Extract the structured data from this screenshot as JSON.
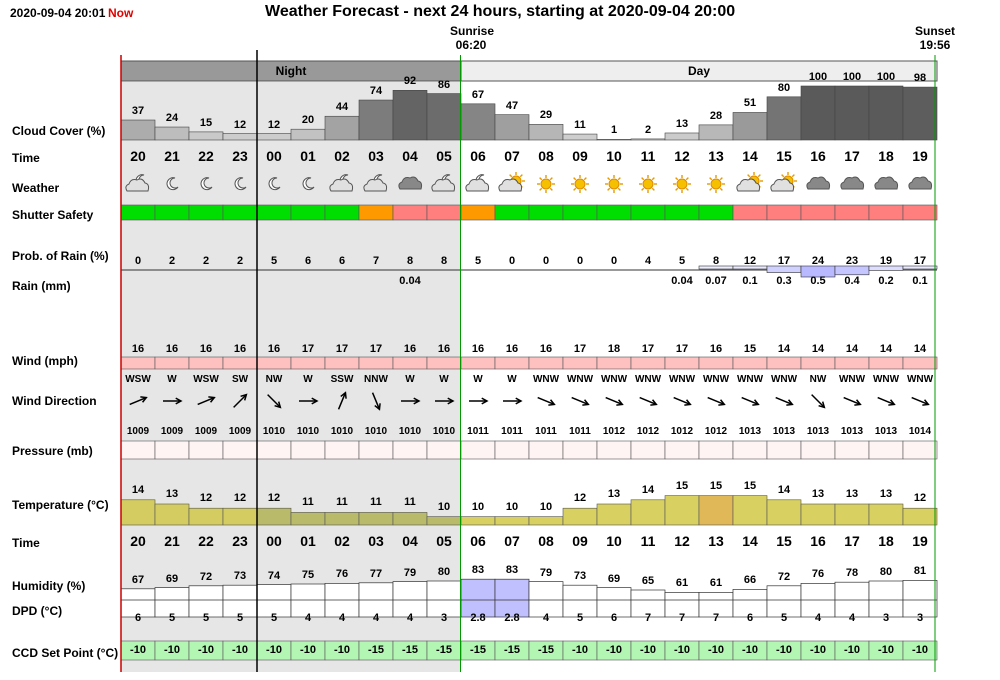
{
  "header": {
    "datetime": "2020-09-04 20:01",
    "now_label": "Now",
    "title": "Weather Forecast - next 24 hours, starting at 2020-09-04 20:00",
    "sunrise_label": "Sunrise",
    "sunrise_time": "06:20",
    "sunset_label": "Sunset",
    "sunset_time": "19:56"
  },
  "bands": {
    "night": "Night",
    "day": "Day"
  },
  "labels": {
    "cloud": "Cloud Cover (%)",
    "time": "Time",
    "weather": "Weather",
    "shutter": "Shutter Safety",
    "rainprob": "Prob. of Rain (%)",
    "rain": "Rain (mm)",
    "wind": "Wind (mph)",
    "winddir": "Wind Direction",
    "pressure": "Pressure (mb)",
    "temp": "Temperature (°C)",
    "time2": "Time",
    "humidity": "Humidity (%)",
    "dpd": "DPD (°C)",
    "ccd": "CCD Set Point (°C)"
  },
  "colors": {
    "night_band": "#e6e6e6",
    "band_header_night": "#999999",
    "band_header_day": "#eeeeee",
    "now_line": "#cc0000",
    "sunrise_line": "#009900",
    "shutter_green": "#00dd00",
    "shutter_orange": "#ff9900",
    "shutter_red": "#ff7f7f",
    "wind_fill": "#ffc0c0",
    "ccd_fill": "#b3f5b3"
  },
  "rows": {
    "cloud": [
      37,
      24,
      15,
      12,
      12,
      20,
      44,
      74,
      92,
      86,
      67,
      47,
      29,
      11,
      1,
      2,
      13,
      28,
      51,
      80,
      100,
      100,
      100,
      98
    ],
    "time": [
      "20",
      "21",
      "22",
      "23",
      "00",
      "01",
      "02",
      "03",
      "04",
      "05",
      "06",
      "07",
      "08",
      "09",
      "10",
      "11",
      "12",
      "13",
      "14",
      "15",
      "16",
      "17",
      "18",
      "19"
    ],
    "weather": [
      "partly-cloudy-night-icon",
      "moon-icon",
      "moon-icon",
      "moon-icon",
      "moon-icon",
      "moon-icon",
      "partly-cloudy-night-icon",
      "partly-cloudy-night-icon",
      "cloud-icon",
      "partly-cloudy-night-icon",
      "partly-cloudy-night-icon",
      "partly-cloudy-day-icon",
      "sun-icon",
      "sun-icon",
      "sun-icon",
      "sun-icon",
      "sun-icon",
      "sun-icon",
      "partly-cloudy-day-icon",
      "partly-cloudy-day-icon",
      "cloud-icon",
      "cloud-icon",
      "cloud-icon",
      "cloud-icon"
    ],
    "shutter": [
      "green",
      "green",
      "green",
      "green",
      "green",
      "green",
      "green",
      "orange",
      "red",
      "red",
      "orange",
      "green",
      "green",
      "green",
      "green",
      "green",
      "green",
      "green",
      "red",
      "red",
      "red",
      "red",
      "red",
      "red"
    ],
    "rainprob": [
      "0",
      "2",
      "2",
      "2",
      "5",
      "6",
      "6",
      "7",
      "8",
      "8",
      "5",
      "0",
      "0",
      "0",
      "0",
      "4",
      "5",
      "8",
      "12",
      "17",
      "24",
      "23",
      "19",
      "17"
    ],
    "rain": [
      "",
      "",
      "",
      "",
      "",
      "",
      "",
      "",
      "0.04",
      "",
      "",
      "",
      "",
      "",
      "",
      "",
      "0.04",
      "0.07",
      "0.1",
      "0.3",
      "0.5",
      "0.4",
      "0.2",
      "0.1"
    ],
    "rain_values": [
      0,
      0,
      0,
      0,
      0,
      0,
      0,
      0,
      0.04,
      0,
      0,
      0,
      0,
      0,
      0,
      0,
      0.04,
      0.07,
      0.1,
      0.3,
      0.5,
      0.4,
      0.2,
      0.1
    ],
    "wind": [
      "16",
      "16",
      "16",
      "16",
      "16",
      "17",
      "17",
      "17",
      "16",
      "16",
      "16",
      "16",
      "16",
      "17",
      "18",
      "17",
      "17",
      "16",
      "15",
      "14",
      "14",
      "14",
      "14",
      "14"
    ],
    "winddir": [
      "WSW",
      "W",
      "WSW",
      "SW",
      "NW",
      "W",
      "SSW",
      "NNW",
      "W",
      "W",
      "W",
      "W",
      "WNW",
      "WNW",
      "WNW",
      "WNW",
      "WNW",
      "WNW",
      "WNW",
      "WNW",
      "NW",
      "WNW",
      "WNW",
      "WNW"
    ],
    "pressure": [
      "1009",
      "1009",
      "1009",
      "1009",
      "1010",
      "1010",
      "1010",
      "1010",
      "1010",
      "1010",
      "1011",
      "1011",
      "1011",
      "1011",
      "1012",
      "1012",
      "1012",
      "1012",
      "1013",
      "1013",
      "1013",
      "1013",
      "1013",
      "1014"
    ],
    "temp": [
      "14",
      "13",
      "12",
      "12",
      "12",
      "11",
      "11",
      "11",
      "11",
      "10",
      "10",
      "10",
      "10",
      "12",
      "13",
      "14",
      "15",
      "15",
      "15",
      "14",
      "13",
      "13",
      "13",
      "12"
    ],
    "humidity": [
      "67",
      "69",
      "72",
      "73",
      "74",
      "75",
      "76",
      "77",
      "79",
      "80",
      "83",
      "83",
      "79",
      "73",
      "69",
      "65",
      "61",
      "61",
      "66",
      "72",
      "76",
      "78",
      "80",
      "81"
    ],
    "dpd": [
      "6",
      "5",
      "5",
      "5",
      "5",
      "4",
      "4",
      "4",
      "4",
      "3",
      "2.8",
      "2.8",
      "4",
      "5",
      "6",
      "7",
      "7",
      "7",
      "6",
      "5",
      "4",
      "4",
      "3",
      "3"
    ],
    "ccd": [
      "-10",
      "-10",
      "-10",
      "-10",
      "-10",
      "-10",
      "-10",
      "-15",
      "-15",
      "-15",
      "-15",
      "-15",
      "-15",
      "-10",
      "-10",
      "-10",
      "-10",
      "-10",
      "-10",
      "-10",
      "-10",
      "-10",
      "-10",
      "-10"
    ]
  }
}
